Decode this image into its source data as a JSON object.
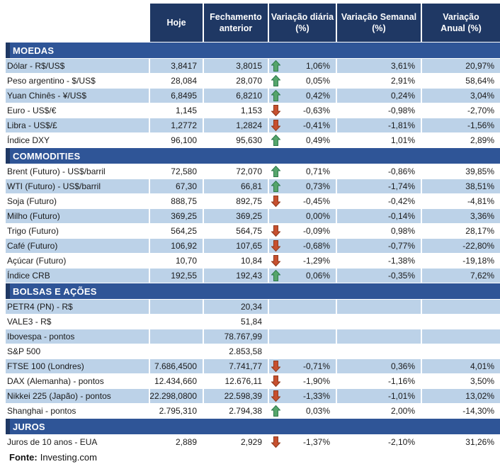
{
  "table": {
    "columns": [
      {
        "id": "hoje",
        "label": "Hoje"
      },
      {
        "id": "fech",
        "label": "Fechamento\nanterior"
      },
      {
        "id": "diaria",
        "label": "Variação diária\n(%)"
      },
      {
        "id": "semanal",
        "label": "Variação Semanal\n(%)"
      },
      {
        "id": "anual",
        "label": "Variação\nAnual (%)"
      }
    ],
    "sections": [
      {
        "id": "moedas",
        "title": "MOEDAS",
        "rows": [
          {
            "label": "Dólar - R$/US$",
            "hoje": "3,8417",
            "fechamento": "3,8015",
            "trend": "up",
            "var_diaria": "1,06%",
            "var_semanal": "3,61%",
            "var_anual": "20,97%",
            "shaded": true
          },
          {
            "label": "Peso argentino - $/US$",
            "hoje": "28,084",
            "fechamento": "28,070",
            "trend": "up",
            "var_diaria": "0,05%",
            "var_semanal": "2,91%",
            "var_anual": "58,64%",
            "shaded": false
          },
          {
            "label": "Yuan Chinês - ¥/US$",
            "hoje": "6,8495",
            "fechamento": "6,8210",
            "trend": "up",
            "var_diaria": "0,42%",
            "var_semanal": "0,24%",
            "var_anual": "3,04%",
            "shaded": true
          },
          {
            "label": "Euro - US$/€",
            "hoje": "1,145",
            "fechamento": "1,153",
            "trend": "down",
            "var_diaria": "-0,63%",
            "var_semanal": "-0,98%",
            "var_anual": "-2,70%",
            "shaded": false
          },
          {
            "label": "Libra - US$/£",
            "hoje": "1,2772",
            "fechamento": "1,2824",
            "trend": "down",
            "var_diaria": "-0,41%",
            "var_semanal": "-1,81%",
            "var_anual": "-1,56%",
            "shaded": true
          },
          {
            "label": "Índice DXY",
            "hoje": "96,100",
            "fechamento": "95,630",
            "trend": "up",
            "var_diaria": "0,49%",
            "var_semanal": "1,01%",
            "var_anual": "2,89%",
            "shaded": false
          }
        ]
      },
      {
        "id": "commodities",
        "title": "COMMODITIES",
        "rows": [
          {
            "label": "Brent (Futuro) - US$/barril",
            "hoje": "72,580",
            "fechamento": "72,070",
            "trend": "up",
            "var_diaria": "0,71%",
            "var_semanal": "-0,86%",
            "var_anual": "39,85%",
            "shaded": false
          },
          {
            "label": "WTI (Futuro) - US$/barril",
            "hoje": "67,30",
            "fechamento": "66,81",
            "trend": "up",
            "var_diaria": "0,73%",
            "var_semanal": "-1,74%",
            "var_anual": "38,51%",
            "shaded": true
          },
          {
            "label": "Soja (Futuro)",
            "hoje": "888,75",
            "fechamento": "892,75",
            "trend": "down",
            "var_diaria": "-0,45%",
            "var_semanal": "-0,42%",
            "var_anual": "-4,81%",
            "shaded": false
          },
          {
            "label": "Milho (Futuro)",
            "hoje": "369,25",
            "fechamento": "369,25",
            "trend": "none",
            "var_diaria": "0,00%",
            "var_semanal": "-0,14%",
            "var_anual": "3,36%",
            "shaded": true
          },
          {
            "label": "Trigo (Futuro)",
            "hoje": "564,25",
            "fechamento": "564,75",
            "trend": "down",
            "var_diaria": "-0,09%",
            "var_semanal": "0,98%",
            "var_anual": "28,17%",
            "shaded": false
          },
          {
            "label": "Café (Futuro)",
            "hoje": "106,92",
            "fechamento": "107,65",
            "trend": "down",
            "var_diaria": "-0,68%",
            "var_semanal": "-0,77%",
            "var_anual": "-22,80%",
            "shaded": true
          },
          {
            "label": "Açúcar (Futuro)",
            "hoje": "10,70",
            "fechamento": "10,84",
            "trend": "down",
            "var_diaria": "-1,29%",
            "var_semanal": "-1,38%",
            "var_anual": "-19,18%",
            "shaded": false
          },
          {
            "label": "Índice CRB",
            "hoje": "192,55",
            "fechamento": "192,43",
            "trend": "up",
            "var_diaria": "0,06%",
            "var_semanal": "-0,35%",
            "var_anual": "7,62%",
            "shaded": true
          }
        ]
      },
      {
        "id": "bolsas-e-acoes",
        "title": "BOLSAS E AÇÕES",
        "rows": [
          {
            "label": "PETR4 (PN) - R$",
            "hoje": "",
            "fechamento": "20,34",
            "trend": "none",
            "var_diaria": "",
            "var_semanal": "",
            "var_anual": "",
            "shaded": true
          },
          {
            "label": "VALE3 - R$",
            "hoje": "",
            "fechamento": "51,84",
            "trend": "none",
            "var_diaria": "",
            "var_semanal": "",
            "var_anual": "",
            "shaded": false
          },
          {
            "label": "Ibovespa - pontos",
            "hoje": "",
            "fechamento": "78.767,99",
            "trend": "none",
            "var_diaria": "",
            "var_semanal": "",
            "var_anual": "",
            "shaded": true
          },
          {
            "label": "S&P 500",
            "hoje": "",
            "fechamento": "2.853,58",
            "trend": "none",
            "var_diaria": "",
            "var_semanal": "",
            "var_anual": "",
            "shaded": false
          },
          {
            "label": "FTSE 100 (Londres)",
            "hoje": "7.686,4500",
            "fechamento": "7.741,77",
            "trend": "down",
            "var_diaria": "-0,71%",
            "var_semanal": "0,36%",
            "var_anual": "4,01%",
            "shaded": true
          },
          {
            "label": "DAX (Alemanha) - pontos",
            "hoje": "12.434,660",
            "fechamento": "12.676,11",
            "trend": "down",
            "var_diaria": "-1,90%",
            "var_semanal": "-1,16%",
            "var_anual": "3,50%",
            "shaded": false
          },
          {
            "label": "Nikkei 225 (Japão) - pontos",
            "hoje": "22.298,0800",
            "fechamento": "22.598,39",
            "trend": "down",
            "var_diaria": "-1,33%",
            "var_semanal": "-1,01%",
            "var_anual": "13,02%",
            "shaded": true
          },
          {
            "label": "Shanghai - pontos",
            "hoje": "2.795,310",
            "fechamento": "2.794,38",
            "trend": "up",
            "var_diaria": "0,03%",
            "var_semanal": "2,00%",
            "var_anual": "-14,30%",
            "shaded": false
          }
        ]
      },
      {
        "id": "juros",
        "title": "JUROS",
        "rows": [
          {
            "label": "Juros de 10 anos - EUA",
            "hoje": "2,889",
            "fechamento": "2,929",
            "trend": "down",
            "var_diaria": "-1,37%",
            "var_semanal": "-2,10%",
            "var_anual": "31,26%",
            "shaded": false
          }
        ]
      }
    ]
  },
  "footer": {
    "source_label": "Fonte:",
    "source_value": "Investing.com"
  },
  "colors": {
    "header_bg": "#1F3864",
    "header_text": "#FFFFFF",
    "section_bg": "#2F5597",
    "section_edge": "#1F3864",
    "row_shaded": "#BCD2E8",
    "text": "#1A1A1A",
    "up_arrow_fill": "#55A56B",
    "up_arrow_border": "#2F7A4D",
    "down_arrow_fill": "#C7502F",
    "down_arrow_border": "#8F3A1E"
  }
}
